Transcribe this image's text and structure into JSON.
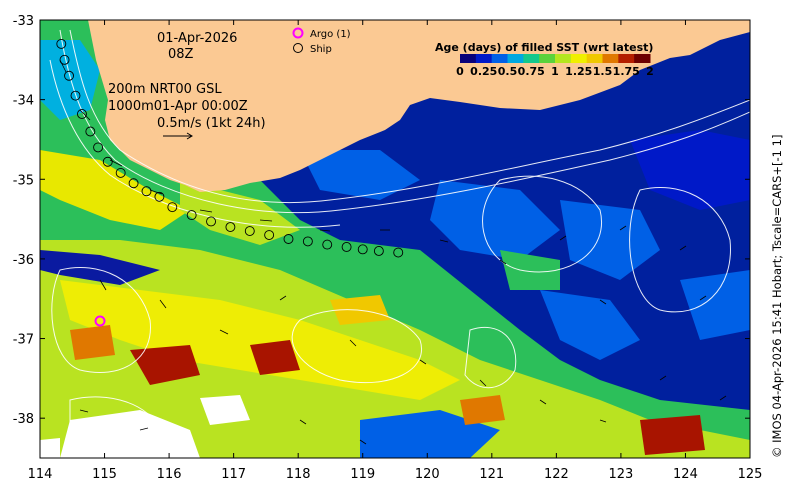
{
  "header": {
    "date": "01-Apr-2026",
    "time": "08Z"
  },
  "legend": {
    "argo": "Argo (1)",
    "ship": "Ship"
  },
  "colorbar": {
    "title": "Age (days) of filled SST (wrt latest)",
    "ticks": [
      "0",
      "0.25",
      "0.5",
      "0.75",
      "1",
      "1.25",
      "1.5",
      "1.75",
      "2"
    ],
    "colors": [
      "#08007a",
      "#0019c8",
      "#0060e6",
      "#00a8e0",
      "#14c88c",
      "#5ad23c",
      "#b4e61e",
      "#f0f000",
      "#f0c800",
      "#e07800",
      "#b41e00",
      "#6e0000"
    ]
  },
  "annotations": {
    "line1": "200m  NRT00 GSL",
    "line2": "1000m01-Apr 00:00Z",
    "vector_scale": "0.5m/s (1kt 24h)"
  },
  "credit": "© IMOS 04-Apr-2026 15:41 Hobart; Tscale=CARS+[-1 1]",
  "axes": {
    "x_ticks": [
      "114",
      "115",
      "116",
      "117",
      "118",
      "119",
      "120",
      "121",
      "122",
      "123",
      "124",
      "125"
    ],
    "y_ticks": [
      "-33",
      "-34",
      "-35",
      "-36",
      "-37",
      "-38"
    ],
    "xlim": [
      114,
      125
    ],
    "ylim": [
      -38.5,
      -33
    ]
  },
  "colors": {
    "land": "#fbc993",
    "contour": "#ffffff",
    "argo": "#ff00ff",
    "ship": "#000000"
  },
  "markers": {
    "argo": [
      {
        "lon": 114.93,
        "lat": -36.78
      }
    ],
    "ship": [
      {
        "lon": 114.33,
        "lat": -33.3
      },
      {
        "lon": 114.38,
        "lat": -33.5
      },
      {
        "lon": 114.45,
        "lat": -33.7
      },
      {
        "lon": 114.55,
        "lat": -33.95
      },
      {
        "lon": 114.65,
        "lat": -34.18
      },
      {
        "lon": 114.78,
        "lat": -34.4
      },
      {
        "lon": 114.9,
        "lat": -34.6
      },
      {
        "lon": 115.05,
        "lat": -34.78
      },
      {
        "lon": 115.25,
        "lat": -34.92
      },
      {
        "lon": 115.45,
        "lat": -35.05
      },
      {
        "lon": 115.65,
        "lat": -35.15
      },
      {
        "lon": 115.85,
        "lat": -35.22
      },
      {
        "lon": 116.05,
        "lat": -35.35
      },
      {
        "lon": 116.35,
        "lat": -35.45
      },
      {
        "lon": 116.65,
        "lat": -35.53
      },
      {
        "lon": 116.95,
        "lat": -35.6
      },
      {
        "lon": 117.25,
        "lat": -35.65
      },
      {
        "lon": 117.55,
        "lat": -35.7
      },
      {
        "lon": 117.85,
        "lat": -35.75
      },
      {
        "lon": 118.15,
        "lat": -35.78
      },
      {
        "lon": 118.45,
        "lat": -35.82
      },
      {
        "lon": 118.75,
        "lat": -35.85
      },
      {
        "lon": 119.0,
        "lat": -35.88
      },
      {
        "lon": 119.25,
        "lat": -35.9
      },
      {
        "lon": 119.55,
        "lat": -35.92
      }
    ]
  }
}
